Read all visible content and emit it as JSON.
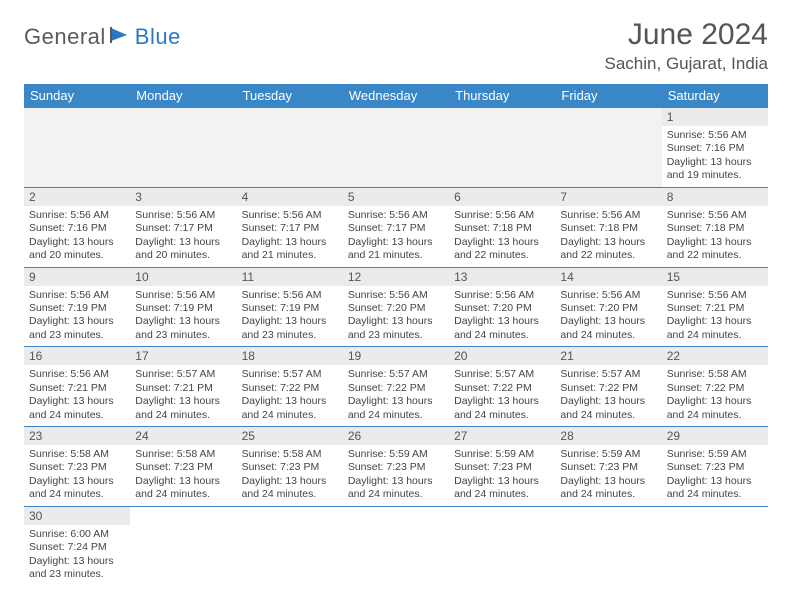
{
  "logo": {
    "text1": "General",
    "text2": "Blue"
  },
  "title": "June 2024",
  "location": "Sachin, Gujarat, India",
  "colors": {
    "header_bg": "#3a87c8",
    "header_text": "#ffffff",
    "daynum_bg": "#ebebeb",
    "border": "#3a87c8",
    "logo_gray": "#5a5a5a",
    "logo_blue": "#2b78c2",
    "text": "#444444",
    "title_text": "#555555",
    "page_bg": "#ffffff"
  },
  "typography": {
    "title_fontsize": 30,
    "location_fontsize": 17,
    "dayheader_fontsize": 13,
    "daynum_fontsize": 12,
    "body_fontsize": 10.5
  },
  "day_headers": [
    "Sunday",
    "Monday",
    "Tuesday",
    "Wednesday",
    "Thursday",
    "Friday",
    "Saturday"
  ],
  "weeks": [
    [
      null,
      null,
      null,
      null,
      null,
      null,
      {
        "n": "1",
        "sr": "Sunrise: 5:56 AM",
        "ss": "Sunset: 7:16 PM",
        "dl": "Daylight: 13 hours and 19 minutes."
      }
    ],
    [
      {
        "n": "2",
        "sr": "Sunrise: 5:56 AM",
        "ss": "Sunset: 7:16 PM",
        "dl": "Daylight: 13 hours and 20 minutes."
      },
      {
        "n": "3",
        "sr": "Sunrise: 5:56 AM",
        "ss": "Sunset: 7:17 PM",
        "dl": "Daylight: 13 hours and 20 minutes."
      },
      {
        "n": "4",
        "sr": "Sunrise: 5:56 AM",
        "ss": "Sunset: 7:17 PM",
        "dl": "Daylight: 13 hours and 21 minutes."
      },
      {
        "n": "5",
        "sr": "Sunrise: 5:56 AM",
        "ss": "Sunset: 7:17 PM",
        "dl": "Daylight: 13 hours and 21 minutes."
      },
      {
        "n": "6",
        "sr": "Sunrise: 5:56 AM",
        "ss": "Sunset: 7:18 PM",
        "dl": "Daylight: 13 hours and 22 minutes."
      },
      {
        "n": "7",
        "sr": "Sunrise: 5:56 AM",
        "ss": "Sunset: 7:18 PM",
        "dl": "Daylight: 13 hours and 22 minutes."
      },
      {
        "n": "8",
        "sr": "Sunrise: 5:56 AM",
        "ss": "Sunset: 7:18 PM",
        "dl": "Daylight: 13 hours and 22 minutes."
      }
    ],
    [
      {
        "n": "9",
        "sr": "Sunrise: 5:56 AM",
        "ss": "Sunset: 7:19 PM",
        "dl": "Daylight: 13 hours and 23 minutes."
      },
      {
        "n": "10",
        "sr": "Sunrise: 5:56 AM",
        "ss": "Sunset: 7:19 PM",
        "dl": "Daylight: 13 hours and 23 minutes."
      },
      {
        "n": "11",
        "sr": "Sunrise: 5:56 AM",
        "ss": "Sunset: 7:19 PM",
        "dl": "Daylight: 13 hours and 23 minutes."
      },
      {
        "n": "12",
        "sr": "Sunrise: 5:56 AM",
        "ss": "Sunset: 7:20 PM",
        "dl": "Daylight: 13 hours and 23 minutes."
      },
      {
        "n": "13",
        "sr": "Sunrise: 5:56 AM",
        "ss": "Sunset: 7:20 PM",
        "dl": "Daylight: 13 hours and 24 minutes."
      },
      {
        "n": "14",
        "sr": "Sunrise: 5:56 AM",
        "ss": "Sunset: 7:20 PM",
        "dl": "Daylight: 13 hours and 24 minutes."
      },
      {
        "n": "15",
        "sr": "Sunrise: 5:56 AM",
        "ss": "Sunset: 7:21 PM",
        "dl": "Daylight: 13 hours and 24 minutes."
      }
    ],
    [
      {
        "n": "16",
        "sr": "Sunrise: 5:56 AM",
        "ss": "Sunset: 7:21 PM",
        "dl": "Daylight: 13 hours and 24 minutes."
      },
      {
        "n": "17",
        "sr": "Sunrise: 5:57 AM",
        "ss": "Sunset: 7:21 PM",
        "dl": "Daylight: 13 hours and 24 minutes."
      },
      {
        "n": "18",
        "sr": "Sunrise: 5:57 AM",
        "ss": "Sunset: 7:22 PM",
        "dl": "Daylight: 13 hours and 24 minutes."
      },
      {
        "n": "19",
        "sr": "Sunrise: 5:57 AM",
        "ss": "Sunset: 7:22 PM",
        "dl": "Daylight: 13 hours and 24 minutes."
      },
      {
        "n": "20",
        "sr": "Sunrise: 5:57 AM",
        "ss": "Sunset: 7:22 PM",
        "dl": "Daylight: 13 hours and 24 minutes."
      },
      {
        "n": "21",
        "sr": "Sunrise: 5:57 AM",
        "ss": "Sunset: 7:22 PM",
        "dl": "Daylight: 13 hours and 24 minutes."
      },
      {
        "n": "22",
        "sr": "Sunrise: 5:58 AM",
        "ss": "Sunset: 7:22 PM",
        "dl": "Daylight: 13 hours and 24 minutes."
      }
    ],
    [
      {
        "n": "23",
        "sr": "Sunrise: 5:58 AM",
        "ss": "Sunset: 7:23 PM",
        "dl": "Daylight: 13 hours and 24 minutes."
      },
      {
        "n": "24",
        "sr": "Sunrise: 5:58 AM",
        "ss": "Sunset: 7:23 PM",
        "dl": "Daylight: 13 hours and 24 minutes."
      },
      {
        "n": "25",
        "sr": "Sunrise: 5:58 AM",
        "ss": "Sunset: 7:23 PM",
        "dl": "Daylight: 13 hours and 24 minutes."
      },
      {
        "n": "26",
        "sr": "Sunrise: 5:59 AM",
        "ss": "Sunset: 7:23 PM",
        "dl": "Daylight: 13 hours and 24 minutes."
      },
      {
        "n": "27",
        "sr": "Sunrise: 5:59 AM",
        "ss": "Sunset: 7:23 PM",
        "dl": "Daylight: 13 hours and 24 minutes."
      },
      {
        "n": "28",
        "sr": "Sunrise: 5:59 AM",
        "ss": "Sunset: 7:23 PM",
        "dl": "Daylight: 13 hours and 24 minutes."
      },
      {
        "n": "29",
        "sr": "Sunrise: 5:59 AM",
        "ss": "Sunset: 7:23 PM",
        "dl": "Daylight: 13 hours and 24 minutes."
      }
    ],
    [
      {
        "n": "30",
        "sr": "Sunrise: 6:00 AM",
        "ss": "Sunset: 7:24 PM",
        "dl": "Daylight: 13 hours and 23 minutes."
      },
      null,
      null,
      null,
      null,
      null,
      null
    ]
  ]
}
